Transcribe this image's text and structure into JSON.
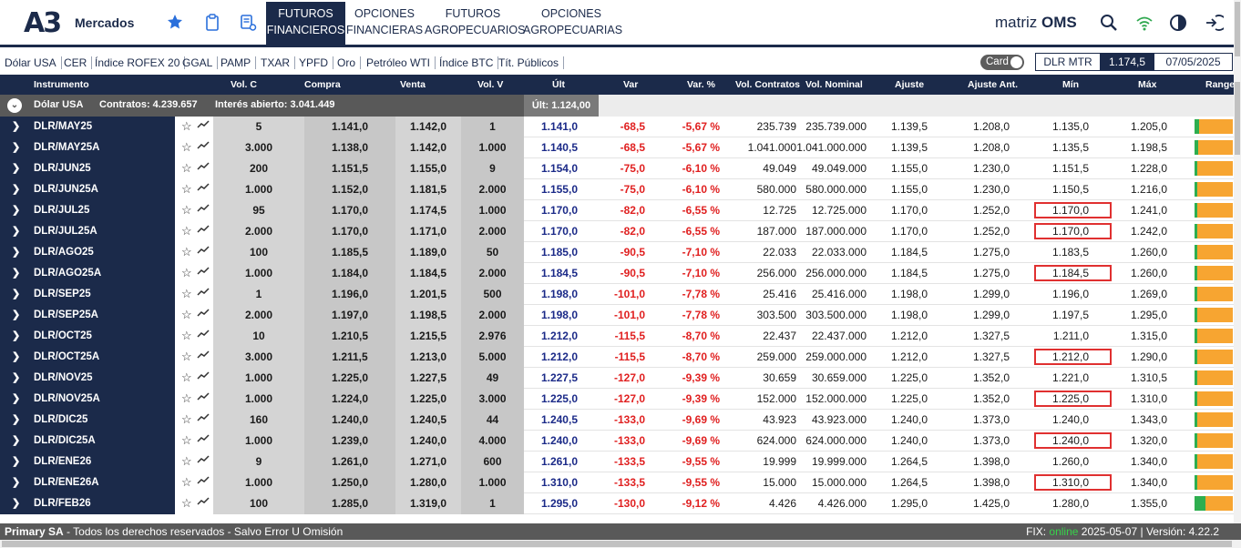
{
  "header": {
    "logo": "A3",
    "logo_text": "Mercados",
    "tabs": [
      {
        "line1": "FUTUROS",
        "line2": "FINANCIEROS",
        "active": true
      },
      {
        "line1": "OPCIONES",
        "line2": "FINANCIERAS",
        "active": false
      },
      {
        "line1": "FUTUROS",
        "line2": "AGROPECUARIOS",
        "active": false
      },
      {
        "line1": "OPCIONES",
        "line2": "AGROPECUARIAS",
        "active": false
      }
    ],
    "brand_prefix": "matriz",
    "brand_suffix": "OMS",
    "icons": [
      "star-icon",
      "clipboard-icon",
      "document-settings-icon",
      "search-icon",
      "wifi-icon",
      "contrast-icon",
      "logout-icon"
    ],
    "accent": "#2a6fdb",
    "navy": "#1b2a4a"
  },
  "quicklinks": [
    "Dólar USA",
    "CER",
    "Índice ROFEX 20",
    "GGAL",
    "PAMP",
    "TXAR",
    "YPFD",
    "Oro",
    "Petróleo WTI",
    "Índice BTC",
    "Tít. Públicos"
  ],
  "card_toggle": "Card",
  "dlr_mtr": {
    "label": "DLR MTR",
    "value": "1.174,5",
    "date": "07/05/2025"
  },
  "columns": [
    "Instrumento",
    "Vol. C",
    "Compra",
    "Venta",
    "Vol. V",
    "Últ",
    "Var",
    "Var. %",
    "Vol. Contratos",
    "Vol. Nominal",
    "Ajuste",
    "Ajuste Ant.",
    "Mín",
    "Máx",
    "Range"
  ],
  "group": {
    "name": "Dólar USA",
    "contracts": "Contratos: 4.239.657",
    "open_interest": "Interés abierto: 3.041.449",
    "last": "Últ: 1.124,00"
  },
  "rows": [
    {
      "name": "DLR/MAY25",
      "volc": "5",
      "compra": "1.141,0",
      "venta": "1.142,0",
      "volv": "1",
      "ult": "1.141,0",
      "var": "-68,5",
      "varp": "-5,67 %",
      "volcon": "235.739",
      "volnom": "235.739.000",
      "ajuste": "1.139,5",
      "ajant": "1.208,0",
      "min": "1.135,0",
      "max": "1.205,0",
      "min_flag": false,
      "range_green": 0.12
    },
    {
      "name": "DLR/MAY25A",
      "volc": "3.000",
      "compra": "1.138,0",
      "venta": "1.142,0",
      "volv": "1.000",
      "ult": "1.140,5",
      "var": "-68,5",
      "varp": "-5,67 %",
      "volcon": "1.041.000",
      "volnom": "1.041.000.000",
      "ajuste": "1.139,5",
      "ajant": "1.208,0",
      "min": "1.135,5",
      "max": "1.198,5",
      "min_flag": false,
      "range_green": 0.1
    },
    {
      "name": "DLR/JUN25",
      "volc": "200",
      "compra": "1.151,5",
      "venta": "1.155,0",
      "volv": "9",
      "ult": "1.154,0",
      "var": "-75,0",
      "varp": "-6,10 %",
      "volcon": "49.049",
      "volnom": "49.049.000",
      "ajuste": "1.155,0",
      "ajant": "1.230,0",
      "min": "1.151,5",
      "max": "1.228,0",
      "min_flag": false,
      "range_green": 0.05
    },
    {
      "name": "DLR/JUN25A",
      "volc": "1.000",
      "compra": "1.152,0",
      "venta": "1.181,5",
      "volv": "2.000",
      "ult": "1.155,0",
      "var": "-75,0",
      "varp": "-6,10 %",
      "volcon": "580.000",
      "volnom": "580.000.000",
      "ajuste": "1.155,0",
      "ajant": "1.230,0",
      "min": "1.150,5",
      "max": "1.216,0",
      "min_flag": false,
      "range_green": 0.07
    },
    {
      "name": "DLR/JUL25",
      "volc": "95",
      "compra": "1.170,0",
      "venta": "1.174,5",
      "volv": "1.000",
      "ult": "1.170,0",
      "var": "-82,0",
      "varp": "-6,55 %",
      "volcon": "12.725",
      "volnom": "12.725.000",
      "ajuste": "1.170,0",
      "ajant": "1.252,0",
      "min": "1.170,0",
      "max": "1.241,0",
      "min_flag": true,
      "range_green": 0.0
    },
    {
      "name": "DLR/JUL25A",
      "volc": "2.000",
      "compra": "1.170,0",
      "venta": "1.171,0",
      "volv": "2.000",
      "ult": "1.170,0",
      "var": "-82,0",
      "varp": "-6,55 %",
      "volcon": "187.000",
      "volnom": "187.000.000",
      "ajuste": "1.170,0",
      "ajant": "1.252,0",
      "min": "1.170,0",
      "max": "1.242,0",
      "min_flag": true,
      "range_green": 0.0
    },
    {
      "name": "DLR/AGO25",
      "volc": "100",
      "compra": "1.185,5",
      "venta": "1.189,0",
      "volv": "50",
      "ult": "1.185,0",
      "var": "-90,5",
      "varp": "-7,10 %",
      "volcon": "22.033",
      "volnom": "22.033.000",
      "ajuste": "1.184,5",
      "ajant": "1.275,0",
      "min": "1.183,5",
      "max": "1.260,0",
      "min_flag": false,
      "range_green": 0.03
    },
    {
      "name": "DLR/AGO25A",
      "volc": "1.000",
      "compra": "1.184,0",
      "venta": "1.184,5",
      "volv": "2.000",
      "ult": "1.184,5",
      "var": "-90,5",
      "varp": "-7,10 %",
      "volcon": "256.000",
      "volnom": "256.000.000",
      "ajuste": "1.184,5",
      "ajant": "1.275,0",
      "min": "1.184,5",
      "max": "1.260,0",
      "min_flag": true,
      "range_green": 0.0
    },
    {
      "name": "DLR/SEP25",
      "volc": "1",
      "compra": "1.196,0",
      "venta": "1.201,5",
      "volv": "500",
      "ult": "1.198,0",
      "var": "-101,0",
      "varp": "-7,78 %",
      "volcon": "25.416",
      "volnom": "25.416.000",
      "ajuste": "1.198,0",
      "ajant": "1.299,0",
      "min": "1.196,0",
      "max": "1.269,0",
      "min_flag": false,
      "range_green": 0.03
    },
    {
      "name": "DLR/SEP25A",
      "volc": "2.000",
      "compra": "1.197,0",
      "venta": "1.198,5",
      "volv": "2.000",
      "ult": "1.198,0",
      "var": "-101,0",
      "varp": "-7,78 %",
      "volcon": "303.500",
      "volnom": "303.500.000",
      "ajuste": "1.198,0",
      "ajant": "1.299,0",
      "min": "1.197,5",
      "max": "1.295,0",
      "min_flag": false,
      "range_green": 0.01
    },
    {
      "name": "DLR/OCT25",
      "volc": "10",
      "compra": "1.210,5",
      "venta": "1.215,5",
      "volv": "2.976",
      "ult": "1.212,0",
      "var": "-115,5",
      "varp": "-8,70 %",
      "volcon": "22.437",
      "volnom": "22.437.000",
      "ajuste": "1.212,0",
      "ajant": "1.327,5",
      "min": "1.211,0",
      "max": "1.315,0",
      "min_flag": false,
      "range_green": 0.01
    },
    {
      "name": "DLR/OCT25A",
      "volc": "3.000",
      "compra": "1.211,5",
      "venta": "1.213,0",
      "volv": "5.000",
      "ult": "1.212,0",
      "var": "-115,5",
      "varp": "-8,70 %",
      "volcon": "259.000",
      "volnom": "259.000.000",
      "ajuste": "1.212,0",
      "ajant": "1.327,5",
      "min": "1.212,0",
      "max": "1.290,0",
      "min_flag": true,
      "range_green": 0.0
    },
    {
      "name": "DLR/NOV25",
      "volc": "1.000",
      "compra": "1.225,0",
      "venta": "1.227,5",
      "volv": "49",
      "ult": "1.227,5",
      "var": "-127,0",
      "varp": "-9,39 %",
      "volcon": "30.659",
      "volnom": "30.659.000",
      "ajuste": "1.225,0",
      "ajant": "1.352,0",
      "min": "1.221,0",
      "max": "1.310,5",
      "min_flag": false,
      "range_green": 0.07
    },
    {
      "name": "DLR/NOV25A",
      "volc": "1.000",
      "compra": "1.224,0",
      "venta": "1.225,0",
      "volv": "3.000",
      "ult": "1.225,0",
      "var": "-127,0",
      "varp": "-9,39 %",
      "volcon": "152.000",
      "volnom": "152.000.000",
      "ajuste": "1.225,0",
      "ajant": "1.352,0",
      "min": "1.225,0",
      "max": "1.310,0",
      "min_flag": true,
      "range_green": 0.0
    },
    {
      "name": "DLR/DIC25",
      "volc": "160",
      "compra": "1.240,0",
      "venta": "1.240,5",
      "volv": "44",
      "ult": "1.240,5",
      "var": "-133,0",
      "varp": "-9,69 %",
      "volcon": "43.923",
      "volnom": "43.923.000",
      "ajuste": "1.240,0",
      "ajant": "1.373,0",
      "min": "1.240,0",
      "max": "1.343,0",
      "min_flag": false,
      "range_green": 0.01
    },
    {
      "name": "DLR/DIC25A",
      "volc": "1.000",
      "compra": "1.239,0",
      "venta": "1.240,0",
      "volv": "4.000",
      "ult": "1.240,0",
      "var": "-133,0",
      "varp": "-9,69 %",
      "volcon": "624.000",
      "volnom": "624.000.000",
      "ajuste": "1.240,0",
      "ajant": "1.373,0",
      "min": "1.240,0",
      "max": "1.320,0",
      "min_flag": true,
      "range_green": 0.0
    },
    {
      "name": "DLR/ENE26",
      "volc": "9",
      "compra": "1.261,0",
      "venta": "1.271,0",
      "volv": "600",
      "ult": "1.261,0",
      "var": "-133,5",
      "varp": "-9,55 %",
      "volcon": "19.999",
      "volnom": "19.999.000",
      "ajuste": "1.264,5",
      "ajant": "1.398,0",
      "min": "1.260,0",
      "max": "1.340,0",
      "min_flag": false,
      "range_green": 0.01
    },
    {
      "name": "DLR/ENE26A",
      "volc": "1.000",
      "compra": "1.250,0",
      "venta": "1.280,0",
      "volv": "1.000",
      "ult": "1.310,0",
      "var": "-133,5",
      "varp": "-9,55 %",
      "volcon": "15.000",
      "volnom": "15.000.000",
      "ajuste": "1.264,5",
      "ajant": "1.398,0",
      "min": "1.310,0",
      "max": "1.340,0",
      "min_flag": true,
      "range_green": 0.0
    },
    {
      "name": "DLR/FEB26",
      "volc": "100",
      "compra": "1.285,0",
      "venta": "1.319,0",
      "volv": "1",
      "ult": "1.295,0",
      "var": "-130,0",
      "varp": "-9,12 %",
      "volcon": "4.426",
      "volnom": "4.426.000",
      "ajuste": "1.295,0",
      "ajant": "1.425,0",
      "min": "1.280,0",
      "max": "1.355,0",
      "min_flag": false,
      "range_green": 0.28
    }
  ],
  "footer": {
    "company": "Primary SA",
    "rights": " - Todos los derechos reservados - Salvo Error U Omisión",
    "fix_label": "FIX: ",
    "fix_status": "online",
    "fix_info": " 2025-05-07 | Versión: 4.22.2",
    "online_color": "#37d34a"
  }
}
